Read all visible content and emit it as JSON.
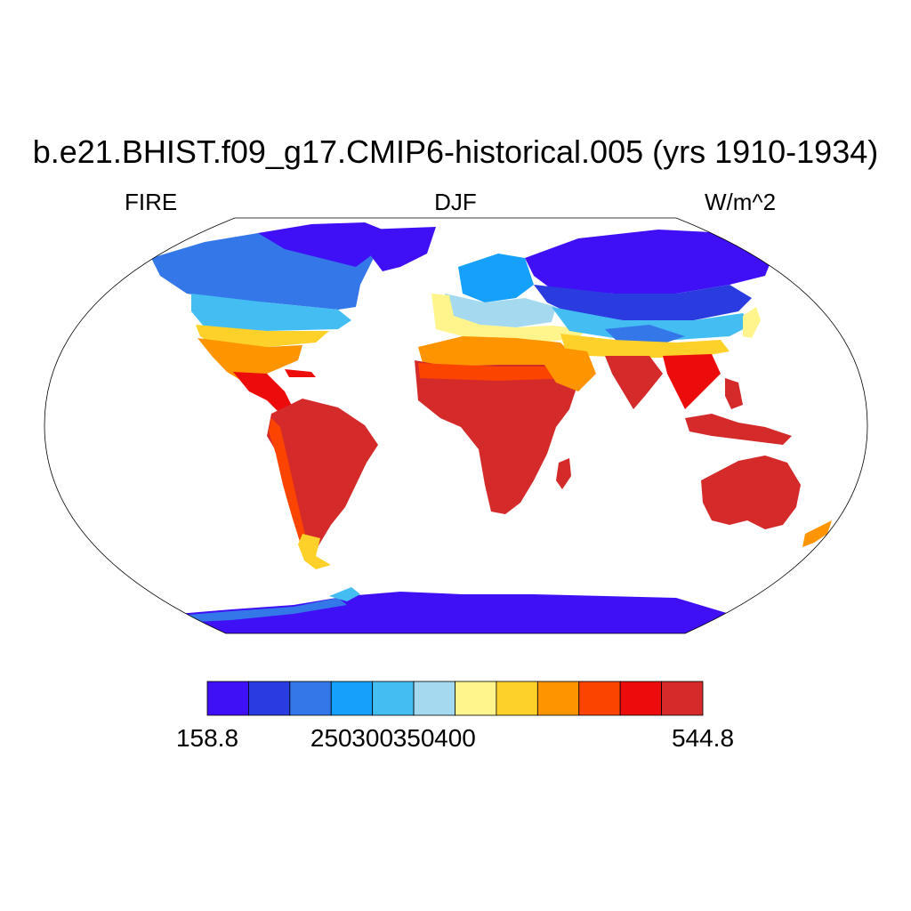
{
  "header": {
    "title": "b.e21.BHIST.f09_g17.CMIP6-historical.005 (yrs 1910-1934)",
    "left_label": "FIRE",
    "center_label": "DJF",
    "right_label": "W/m^2"
  },
  "colorbar": {
    "colors": [
      "#3f10f5",
      "#2a3ce0",
      "#3377e8",
      "#15a1fb",
      "#44bdf2",
      "#a5d9ef",
      "#fff58c",
      "#fdd12a",
      "#fd9400",
      "#fb4400",
      "#ec0c0c",
      "#d42a2a"
    ],
    "labels": [
      {
        "text": "158.8",
        "boundary": 0
      },
      {
        "text": "250",
        "boundary": 3
      },
      {
        "text": "300",
        "boundary": 4
      },
      {
        "text": "350",
        "boundary": 5
      },
      {
        "text": "400",
        "boundary": 6
      },
      {
        "text": "544.8",
        "boundary": 12
      }
    ]
  },
  "map": {
    "projection": "robinson",
    "ocean_color": "#ffffff",
    "outline_color": "#000000"
  }
}
